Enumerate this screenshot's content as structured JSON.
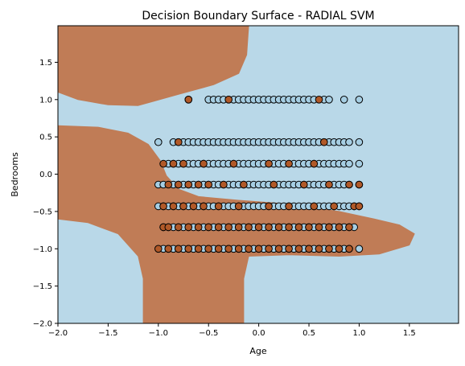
{
  "chart_data": {
    "type": "scatter",
    "title": "Decision Boundary Surface - RADIAL SVM",
    "xlabel": "Age",
    "ylabel": "Bedrooms",
    "xlim": [
      -2.0,
      1.99
    ],
    "ylim": [
      -2.0,
      1.99
    ],
    "x_ticks": [
      -2.0,
      -1.5,
      -1.0,
      -0.5,
      0.0,
      0.5,
      1.0,
      1.5
    ],
    "x_tick_labels": [
      "−2.0",
      "−1.5",
      "−1.0",
      "−0.5",
      "0.0",
      "0.5",
      "1.0",
      "1.5"
    ],
    "y_ticks": [
      -2.0,
      -1.5,
      -1.0,
      -0.5,
      0.0,
      0.5,
      1.0,
      1.5
    ],
    "y_tick_labels": [
      "−2.0",
      "−1.5",
      "−1.0",
      "−0.5",
      "0.0",
      "0.5",
      "1.0",
      "1.5"
    ],
    "grid": false,
    "colors": {
      "class_0_region": "#b9d8e8",
      "class_1_region": "#c07c56",
      "class_0_point": "#a6cee3",
      "class_1_point": "#b15928",
      "point_edge": "#000000"
    },
    "y_levels": [
      1.0,
      0.43,
      0.14,
      -0.14,
      -0.43,
      -0.71,
      -1.0
    ],
    "points": [
      {
        "y": 1.0,
        "cls": 0,
        "x": [
          -0.7,
          -0.5,
          -0.45,
          -0.4,
          -0.35,
          -0.3,
          -0.25,
          -0.2,
          -0.15,
          -0.1,
          -0.05,
          0.0,
          0.05,
          0.1,
          0.15,
          0.2,
          0.25,
          0.3,
          0.35,
          0.4,
          0.45,
          0.5,
          0.55,
          0.65,
          0.7,
          0.85,
          1.0
        ]
      },
      {
        "y": 1.0,
        "cls": 1,
        "x": [
          -0.7,
          -0.3,
          0.6
        ]
      },
      {
        "y": 0.43,
        "cls": 0,
        "x": [
          -1.0,
          -0.85,
          -0.8,
          -0.75,
          -0.7,
          -0.65,
          -0.6,
          -0.55,
          -0.5,
          -0.45,
          -0.4,
          -0.35,
          -0.3,
          -0.25,
          -0.2,
          -0.15,
          -0.1,
          -0.05,
          0.0,
          0.05,
          0.1,
          0.15,
          0.2,
          0.25,
          0.3,
          0.35,
          0.4,
          0.45,
          0.5,
          0.55,
          0.6,
          0.65,
          0.7,
          0.75,
          0.8,
          0.85,
          0.9,
          1.0
        ]
      },
      {
        "y": 0.43,
        "cls": 1,
        "x": [
          -0.8,
          0.65
        ]
      },
      {
        "y": 0.14,
        "cls": 0,
        "x": [
          -0.9,
          -0.85,
          -0.8,
          -0.75,
          -0.7,
          -0.65,
          -0.6,
          -0.55,
          -0.5,
          -0.45,
          -0.4,
          -0.35,
          -0.3,
          -0.25,
          -0.2,
          -0.15,
          -0.1,
          -0.05,
          0.0,
          0.05,
          0.1,
          0.15,
          0.2,
          0.25,
          0.3,
          0.35,
          0.4,
          0.45,
          0.5,
          0.55,
          0.6,
          0.65,
          0.7,
          0.75,
          0.8,
          0.85,
          0.9,
          1.0
        ]
      },
      {
        "y": 0.14,
        "cls": 1,
        "x": [
          -0.95,
          -0.85,
          -0.75,
          -0.55,
          -0.25,
          0.1,
          0.3,
          0.55
        ]
      },
      {
        "y": -0.14,
        "cls": 0,
        "x": [
          -1.0,
          -0.95,
          -0.85,
          -0.8,
          -0.75,
          -0.7,
          -0.65,
          -0.6,
          -0.55,
          -0.5,
          -0.45,
          -0.4,
          -0.35,
          -0.3,
          -0.25,
          -0.2,
          -0.15,
          -0.1,
          -0.05,
          0.0,
          0.05,
          0.1,
          0.15,
          0.2,
          0.25,
          0.3,
          0.35,
          0.4,
          0.45,
          0.5,
          0.55,
          0.6,
          0.65,
          0.7,
          0.75,
          0.8,
          0.85,
          0.9,
          1.0
        ]
      },
      {
        "y": -0.14,
        "cls": 1,
        "x": [
          -0.9,
          -0.8,
          -0.7,
          -0.6,
          -0.5,
          -0.35,
          -0.15,
          0.15,
          0.45,
          0.7,
          0.9,
          1.0
        ]
      },
      {
        "y": -0.43,
        "cls": 0,
        "x": [
          -1.0,
          -0.95,
          -0.9,
          -0.85,
          -0.8,
          -0.75,
          -0.7,
          -0.65,
          -0.6,
          -0.55,
          -0.5,
          -0.45,
          -0.4,
          -0.35,
          -0.3,
          -0.25,
          -0.2,
          -0.15,
          -0.1,
          -0.05,
          0.0,
          0.05,
          0.1,
          0.15,
          0.2,
          0.25,
          0.3,
          0.35,
          0.4,
          0.45,
          0.5,
          0.55,
          0.6,
          0.65,
          0.7,
          0.75,
          0.8,
          0.85,
          0.9,
          0.95,
          1.0
        ]
      },
      {
        "y": -0.43,
        "cls": 1,
        "x": [
          -0.95,
          -0.85,
          -0.75,
          -0.65,
          -0.55,
          -0.4,
          -0.2,
          0.1,
          0.3,
          0.55,
          0.75,
          0.95,
          1.0
        ]
      },
      {
        "y": -0.71,
        "cls": 0,
        "x": [
          -0.95,
          -0.9,
          -0.85,
          -0.8,
          -0.75,
          -0.7,
          -0.65,
          -0.6,
          -0.55,
          -0.5,
          -0.45,
          -0.4,
          -0.35,
          -0.3,
          -0.25,
          -0.2,
          -0.15,
          -0.1,
          -0.05,
          0.0,
          0.05,
          0.1,
          0.15,
          0.2,
          0.25,
          0.3,
          0.35,
          0.4,
          0.45,
          0.5,
          0.55,
          0.6,
          0.65,
          0.7,
          0.75,
          0.8,
          0.85,
          0.9,
          0.95
        ]
      },
      {
        "y": -0.71,
        "cls": 1,
        "x": [
          -0.95,
          -0.9,
          -0.8,
          -0.7,
          -0.6,
          -0.5,
          -0.4,
          -0.3,
          -0.2,
          -0.1,
          0.0,
          0.1,
          0.2,
          0.3,
          0.4,
          0.5,
          0.6,
          0.7,
          0.8,
          0.9
        ]
      },
      {
        "y": -1.0,
        "cls": 0,
        "x": [
          -0.95,
          -0.9,
          -0.85,
          -0.8,
          -0.75,
          -0.7,
          -0.65,
          -0.6,
          -0.55,
          -0.5,
          -0.45,
          -0.4,
          -0.35,
          -0.3,
          -0.25,
          -0.2,
          -0.15,
          -0.1,
          -0.05,
          0.0,
          0.05,
          0.1,
          0.15,
          0.2,
          0.25,
          0.3,
          0.35,
          0.4,
          0.45,
          0.5,
          0.55,
          0.6,
          0.65,
          0.7,
          0.75,
          0.8,
          0.85,
          0.9,
          1.0
        ]
      },
      {
        "y": -1.0,
        "cls": 1,
        "x": [
          -1.0,
          -0.9,
          -0.8,
          -0.7,
          -0.6,
          -0.5,
          -0.4,
          -0.3,
          -0.2,
          -0.1,
          0.0,
          0.1,
          0.2,
          0.3,
          0.4,
          0.5,
          0.6,
          0.7,
          0.8,
          0.9
        ]
      }
    ],
    "decision_regions": {
      "background_class": 0,
      "class_1_regions": [
        {
          "name": "upper-left",
          "polygon": [
            [
              -2.0,
              1.99
            ],
            [
              -0.1,
              1.99
            ],
            [
              -0.12,
              1.6
            ],
            [
              -0.2,
              1.35
            ],
            [
              -0.45,
              1.2
            ],
            [
              -0.8,
              1.07
            ],
            [
              -1.2,
              0.92
            ],
            [
              -1.5,
              0.93
            ],
            [
              -1.8,
              1.0
            ],
            [
              -2.0,
              1.1
            ]
          ]
        },
        {
          "name": "main-body",
          "polygon": [
            [
              -2.0,
              0.65
            ],
            [
              -1.6,
              0.63
            ],
            [
              -1.3,
              0.55
            ],
            [
              -1.1,
              0.4
            ],
            [
              -0.98,
              0.18
            ],
            [
              -0.92,
              -0.02
            ],
            [
              -0.8,
              -0.2
            ],
            [
              -0.6,
              -0.3
            ],
            [
              -0.2,
              -0.35
            ],
            [
              0.3,
              -0.4
            ],
            [
              0.8,
              -0.5
            ],
            [
              1.15,
              -0.6
            ],
            [
              1.4,
              -0.68
            ],
            [
              1.55,
              -0.8
            ],
            [
              1.5,
              -0.95
            ],
            [
              1.2,
              -1.07
            ],
            [
              0.8,
              -1.1
            ],
            [
              0.3,
              -1.08
            ],
            [
              -0.1,
              -1.1
            ],
            [
              -0.15,
              -1.4
            ],
            [
              -0.15,
              -2.0
            ],
            [
              -1.15,
              -2.0
            ],
            [
              -1.15,
              -1.4
            ],
            [
              -1.2,
              -1.1
            ],
            [
              -1.4,
              -0.8
            ],
            [
              -1.7,
              -0.65
            ],
            [
              -2.0,
              -0.6
            ]
          ]
        }
      ]
    }
  }
}
